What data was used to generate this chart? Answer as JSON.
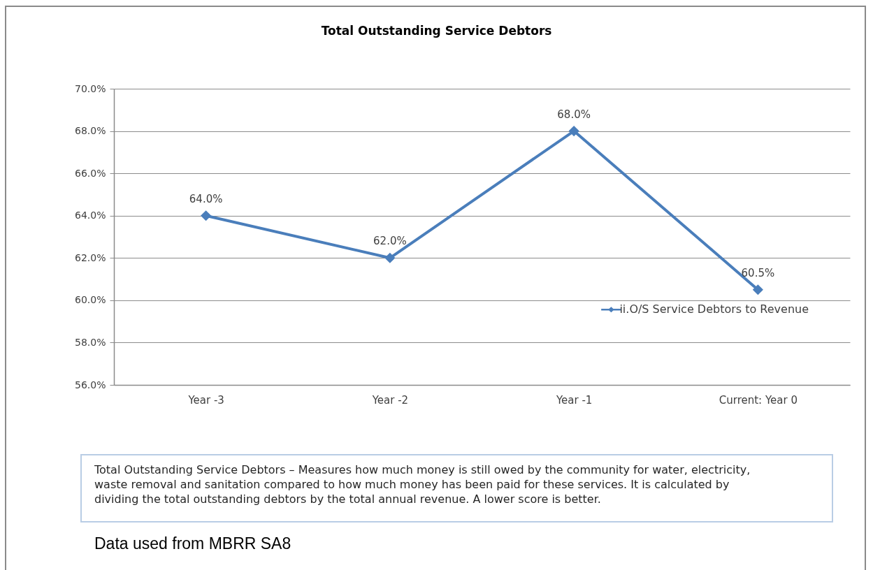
{
  "chart_data": {
    "type": "line",
    "title": "Total Outstanding Service Debtors",
    "categories": [
      "Year -3",
      "Year -2",
      "Year -1",
      "Current: Year 0"
    ],
    "series": [
      {
        "name": "ii.O/S Service Debtors to Revenue",
        "color": "#4a7ebb",
        "values": [
          64.0,
          62.0,
          68.0,
          60.5
        ],
        "value_labels": [
          "64.0%",
          "62.0%",
          "68.0%",
          "60.5%"
        ]
      }
    ],
    "ylim": [
      56,
      70
    ],
    "yticks": [
      {
        "value": 56,
        "label": "56.0%"
      },
      {
        "value": 58,
        "label": "58.0%"
      },
      {
        "value": 60,
        "label": "60.0%"
      },
      {
        "value": 62,
        "label": "62.0%"
      },
      {
        "value": 64,
        "label": "64.0%"
      },
      {
        "value": 66,
        "label": "66.0%"
      },
      {
        "value": 68,
        "label": "68.0%"
      },
      {
        "value": 70,
        "label": "70.0%"
      }
    ],
    "grid": "y",
    "legend": "right",
    "marker": "diamond",
    "line_style": "solid",
    "annotations": [
      "Total Outstanding Service Debtors – Measures how much money is still owed by the community for water, electricity, waste removal and sanitation compared to how much money has been paid for these services. It is calculated by dividing the total outstanding debtors by the total annual revenue. A lower score is better.",
      "Data used from MBRR SA8"
    ]
  }
}
